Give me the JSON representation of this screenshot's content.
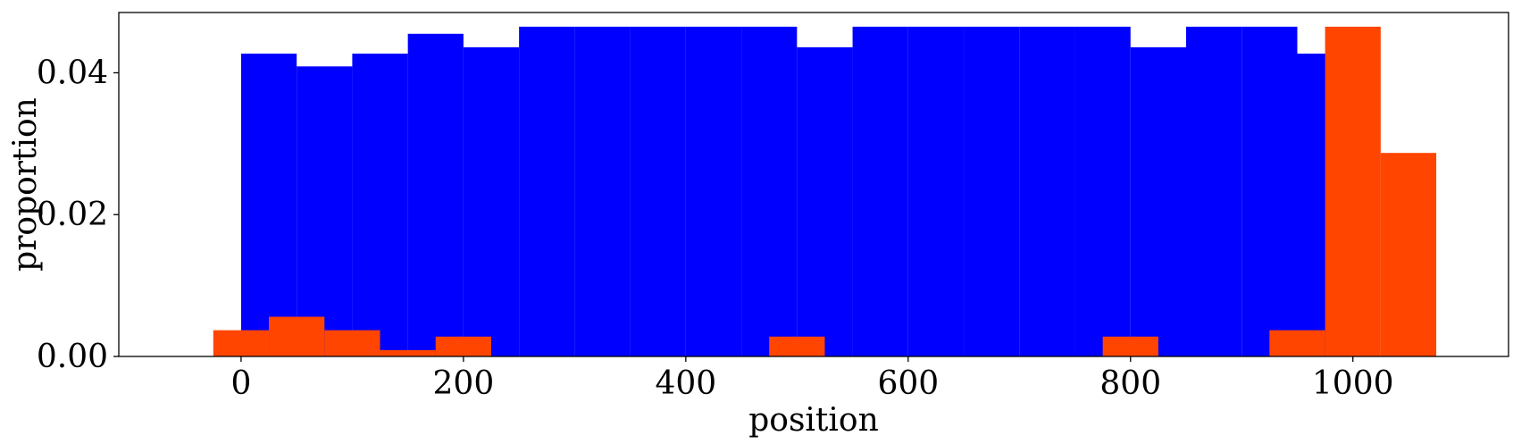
{
  "chart_data": {
    "type": "bar",
    "xlabel": "position",
    "ylabel": "proportion",
    "xlim": [
      -110,
      1140
    ],
    "ylim": [
      0,
      0.0485
    ],
    "bar_width": 50,
    "x_ticks": [
      0,
      200,
      400,
      600,
      800,
      1000
    ],
    "x_tick_labels": [
      "0",
      "200",
      "400",
      "600",
      "800",
      "1000"
    ],
    "y_ticks": [
      0,
      0.02,
      0.04
    ],
    "y_tick_labels": [
      "0.00",
      "0.02",
      "0.04"
    ],
    "grid": false,
    "series": [
      {
        "color": "#0000ff",
        "x": [
          25,
          75,
          125,
          175,
          225,
          275,
          325,
          375,
          425,
          475,
          525,
          575,
          625,
          675,
          725,
          775,
          825,
          875,
          925,
          975
        ],
        "values": [
          0.0427,
          0.0409,
          0.0427,
          0.0455,
          0.0436,
          0.0465,
          0.0465,
          0.0465,
          0.0465,
          0.0465,
          0.0436,
          0.0465,
          0.0465,
          0.0465,
          0.0465,
          0.0465,
          0.0436,
          0.0465,
          0.0465,
          0.0427
        ]
      },
      {
        "color": "#ff4500",
        "x": [
          0,
          50,
          100,
          150,
          200,
          500,
          800,
          950,
          1000,
          1050
        ],
        "values": [
          0.0037,
          0.0056,
          0.0037,
          0.0009,
          0.0028,
          0.0028,
          0.0028,
          0.0037,
          0.0465,
          0.0287
        ]
      }
    ]
  }
}
